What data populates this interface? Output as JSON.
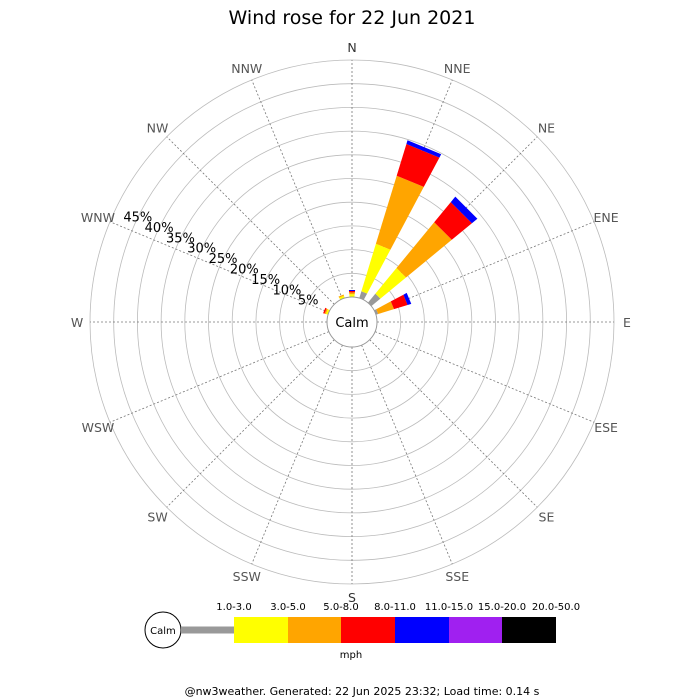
{
  "chart_data": {
    "type": "wind-rose",
    "title": "Wind rose for 22 Jun 2021",
    "directions": [
      "N",
      "NNE",
      "NE",
      "ENE",
      "E",
      "ESE",
      "SE",
      "SSE",
      "S",
      "SSW",
      "SW",
      "WSW",
      "W",
      "WNW",
      "NW",
      "NNW"
    ],
    "radial_ticks": [
      "5%",
      "10%",
      "15%",
      "20%",
      "25%",
      "30%",
      "35%",
      "40%",
      "45%"
    ],
    "rmax_percent": 50,
    "center_label": "Calm",
    "speed_bins": [
      {
        "label": "1.0-3.0",
        "color": "#999999"
      },
      {
        "label": "3.0-5.0",
        "color": "#ffff00"
      },
      {
        "label": "5.0-8.0",
        "color": "#ffa500"
      },
      {
        "label": "8.0-11.0",
        "color": "#ff0000"
      },
      {
        "label": "11.0-15.0",
        "color": "#0000ff"
      },
      {
        "label": "15.0-20.0",
        "color": "#a020f0"
      },
      {
        "label": "20.0-50.0",
        "color": "#000000"
      }
    ],
    "speed_unit": "mph",
    "series": [
      {
        "direction": "N",
        "values": [
          0.0,
          0.6,
          0.4,
          0.3,
          0.2,
          0,
          0
        ]
      },
      {
        "direction": "NNE",
        "values": [
          1.5,
          10.5,
          15.0,
          7.0,
          0.8,
          0,
          0
        ]
      },
      {
        "direction": "NE",
        "values": [
          2.5,
          7.0,
          12.5,
          5.5,
          1.5,
          0,
          0
        ]
      },
      {
        "direction": "ENE",
        "values": [
          0.5,
          0.0,
          3.5,
          3.0,
          0.8,
          0,
          0
        ]
      },
      {
        "direction": "E",
        "values": [
          0.0,
          0.0,
          0.0,
          0.0,
          0.0,
          0,
          0
        ]
      },
      {
        "direction": "ESE",
        "values": [
          0.0,
          0.0,
          0.0,
          0.0,
          0.0,
          0,
          0
        ]
      },
      {
        "direction": "SE",
        "values": [
          0.0,
          0.0,
          0.0,
          0.0,
          0.0,
          0,
          0
        ]
      },
      {
        "direction": "SSE",
        "values": [
          0.0,
          0.0,
          0.0,
          0.0,
          0.0,
          0,
          0
        ]
      },
      {
        "direction": "S",
        "values": [
          0.0,
          0.0,
          0.0,
          0.0,
          0.0,
          0,
          0
        ]
      },
      {
        "direction": "SSW",
        "values": [
          0.0,
          0.0,
          0.0,
          0.0,
          0.0,
          0,
          0
        ]
      },
      {
        "direction": "SW",
        "values": [
          0.0,
          0.0,
          0.0,
          0.0,
          0.0,
          0,
          0
        ]
      },
      {
        "direction": "WSW",
        "values": [
          0.0,
          0.0,
          0.0,
          0.0,
          0.0,
          0,
          0
        ]
      },
      {
        "direction": "W",
        "values": [
          0.0,
          0.0,
          0.0,
          0.0,
          0.0,
          0,
          0
        ]
      },
      {
        "direction": "WNW",
        "values": [
          0.0,
          0.5,
          0.3,
          0.3,
          0.0,
          0,
          0
        ]
      },
      {
        "direction": "NW",
        "values": [
          0.0,
          0.0,
          0.0,
          0.0,
          0.0,
          0,
          0
        ]
      },
      {
        "direction": "NNW",
        "values": [
          0.0,
          0.5,
          0.3,
          0.0,
          0.0,
          0,
          0
        ]
      }
    ]
  },
  "footer": "@nw3weather. Generated: 22 Jun 2025 23:32; Load time: 0.14 s"
}
